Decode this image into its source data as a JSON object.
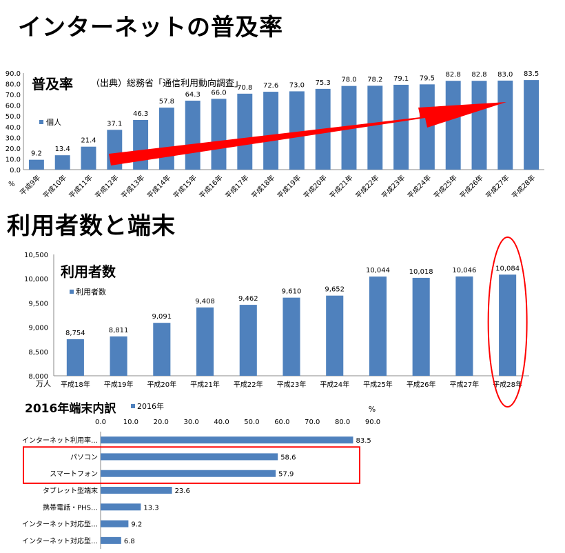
{
  "page": {
    "title1": "インターネットの普及率",
    "title2": "利用者数と端末"
  },
  "chart_data": [
    {
      "type": "bar",
      "title": "普及率",
      "source": "（出典）総務省「通信利用動向調査」",
      "ylabel": "%",
      "ylim": [
        0,
        90
      ],
      "yticks": [
        "0.0",
        "10.0",
        "20.0",
        "30.0",
        "40.0",
        "50.0",
        "60.0",
        "70.0",
        "80.0",
        "90.0"
      ],
      "legend": "個人",
      "legend_position": "left",
      "categories": [
        "平成9年",
        "平成10年",
        "平成11年",
        "平成12年",
        "平成13年",
        "平成14年",
        "平成15年",
        "平成16年",
        "平成17年",
        "平成18年",
        "平成19年",
        "平成20年",
        "平成21年",
        "平成22年",
        "平成23年",
        "平成24年",
        "平成25年",
        "平成26年",
        "平成27年",
        "平成28年"
      ],
      "values": [
        9.2,
        13.4,
        21.4,
        37.1,
        46.3,
        57.8,
        64.3,
        66.0,
        70.8,
        72.6,
        73.0,
        75.3,
        78.0,
        78.2,
        79.1,
        79.5,
        82.8,
        82.8,
        83.0,
        83.5
      ],
      "labels": [
        "9.2",
        "13.4",
        "21.4",
        "37.1",
        "46.3",
        "57.8",
        "64.3",
        "66.0",
        "70.8",
        "72.6",
        "73.0",
        "75.3",
        "78.0",
        "78.2",
        "79.1",
        "79.5",
        "82.8",
        "82.8",
        "83.0",
        "83.5"
      ],
      "bar_color": "#4f81bd",
      "arrow_color": "#ff0000"
    },
    {
      "type": "bar",
      "title": "利用者数",
      "ylabel": "万人",
      "ylim": [
        8000,
        10500
      ],
      "yticks": [
        "8,000",
        "8,500",
        "9,000",
        "9,500",
        "10,000",
        "10,500"
      ],
      "legend": "利用者数",
      "legend_position": "left",
      "categories": [
        "平成18年",
        "平成19年",
        "平成20年",
        "平成21年",
        "平成22年",
        "平成23年",
        "平成24年",
        "平成25年",
        "平成26年",
        "平成27年",
        "平成28年"
      ],
      "values": [
        8754,
        8811,
        9091,
        9408,
        9462,
        9610,
        9652,
        10044,
        10018,
        10046,
        10084
      ],
      "labels": [
        "8,754",
        "8,811",
        "9,091",
        "9,408",
        "9,462",
        "9,610",
        "9,652",
        "10,044",
        "10,018",
        "10,046",
        "10,084"
      ],
      "bar_color": "#4f81bd",
      "highlight": "平成28年",
      "highlight_color": "#ff0000"
    },
    {
      "type": "bar",
      "orientation": "horizontal",
      "title": "2016年端末内訳",
      "legend": "2016年",
      "legend_position": "top",
      "unit": "%",
      "xlim": [
        0,
        90
      ],
      "xticks": [
        "0.0",
        "10.0",
        "20.0",
        "30.0",
        "40.0",
        "50.0",
        "60.0",
        "70.0",
        "80.0",
        "90.0"
      ],
      "categories": [
        "インターネット利用率…",
        "パソコン",
        "スマートフォン",
        "タブレット型端末",
        "携帯電話・PHS…",
        "インターネット対応型…",
        "インターネット対応型…"
      ],
      "values": [
        83.5,
        58.6,
        57.9,
        23.6,
        13.3,
        9.2,
        6.8
      ],
      "labels": [
        "83.5",
        "58.6",
        "57.9",
        "23.6",
        "13.3",
        "9.2",
        "6.8"
      ],
      "bar_color": "#4f81bd",
      "highlight": [
        "パソコン",
        "スマートフォン"
      ],
      "highlight_color": "#ff0000"
    }
  ]
}
